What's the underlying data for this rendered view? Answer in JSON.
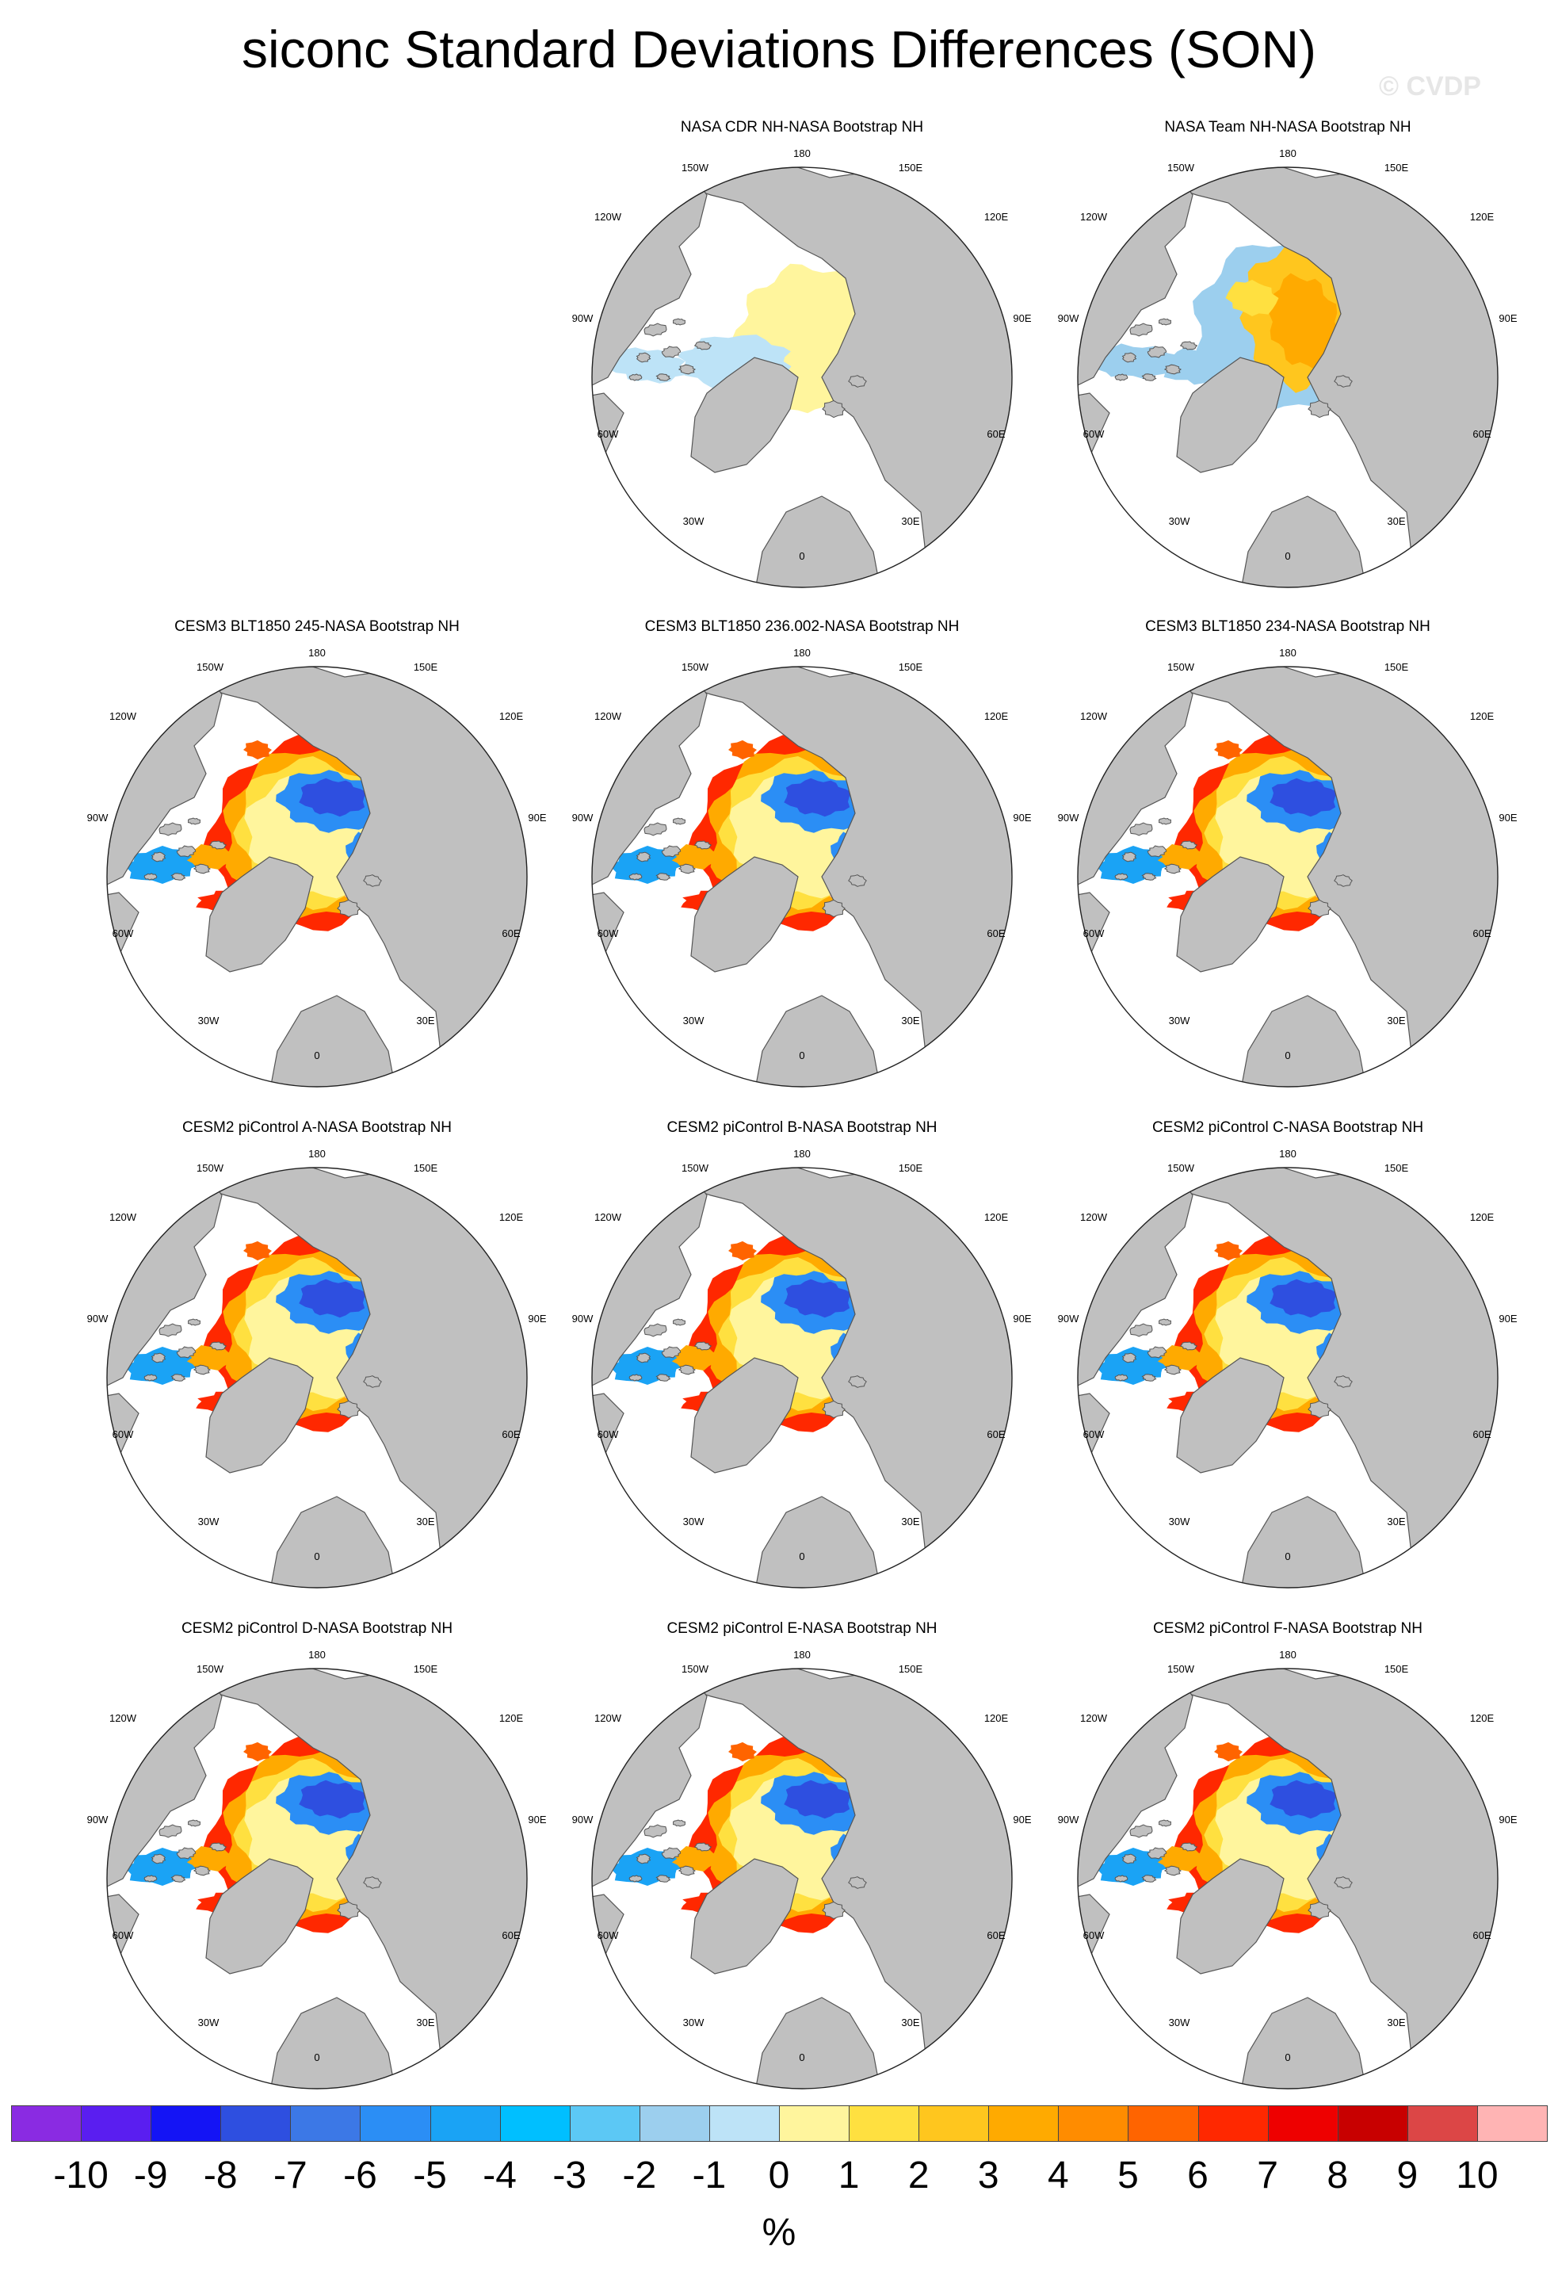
{
  "title": "siconc Standard Deviations Differences (SON)",
  "watermark": "© CVDP",
  "lon_labels": {
    "l180": "180",
    "l150w": "150W",
    "l120w": "120W",
    "l90w": "90W",
    "l60w": "60W",
    "l30w": "30W",
    "l0": "0",
    "l30e": "30E",
    "l60e": "60E",
    "l90e": "90E",
    "l120e": "120E",
    "l150e": "150E"
  },
  "colors": {
    "land": "#c0c0c0",
    "ocean": "#ffffff",
    "scale": [
      "#8a2be2",
      "#5a1ef0",
      "#1414f5",
      "#2e4fe0",
      "#3c78e6",
      "#2b8ef5",
      "#1aa3f5",
      "#00bfff",
      "#5cc8f5",
      "#9ccfee",
      "#bde3f7",
      "#fff59d",
      "#ffe040",
      "#ffc61e",
      "#ffaa00",
      "#ff8c00",
      "#ff6400",
      "#ff2800",
      "#ee0000",
      "#c80000",
      "#dc4646",
      "#ffb4b4"
    ]
  },
  "colorbar": {
    "labels": [
      "-10",
      "-9",
      "-8",
      "-7",
      "-6",
      "-5",
      "-4",
      "-3",
      "-2",
      "-1",
      "0",
      "1",
      "2",
      "3",
      "4",
      "5",
      "6",
      "7",
      "8",
      "9",
      "10"
    ],
    "units": "%"
  },
  "panels": [
    {
      "id": "p1",
      "title": "NASA CDR NH-NASA Bootstrap NH",
      "pattern": "cdr"
    },
    {
      "id": "p2",
      "title": "NASA Team NH-NASA Bootstrap NH",
      "pattern": "team"
    },
    {
      "id": "p3",
      "title": "CESM3 BLT1850 245-NASA Bootstrap NH",
      "pattern": "model"
    },
    {
      "id": "p4",
      "title": "CESM3 BLT1850 236.002-NASA Bootstrap NH",
      "pattern": "model"
    },
    {
      "id": "p5",
      "title": "CESM3 BLT1850 234-NASA Bootstrap NH",
      "pattern": "model"
    },
    {
      "id": "p6",
      "title": "CESM2 piControl A-NASA Bootstrap NH",
      "pattern": "model"
    },
    {
      "id": "p7",
      "title": "CESM2 piControl B-NASA Bootstrap NH",
      "pattern": "model"
    },
    {
      "id": "p8",
      "title": "CESM2 piControl C-NASA Bootstrap NH",
      "pattern": "model"
    },
    {
      "id": "p9",
      "title": "CESM2 piControl D-NASA Bootstrap NH",
      "pattern": "model"
    },
    {
      "id": "p10",
      "title": "CESM2 piControl E-NASA Bootstrap NH",
      "pattern": "model"
    },
    {
      "id": "p11",
      "title": "CESM2 piControl F-NASA Bootstrap NH",
      "pattern": "model"
    }
  ]
}
